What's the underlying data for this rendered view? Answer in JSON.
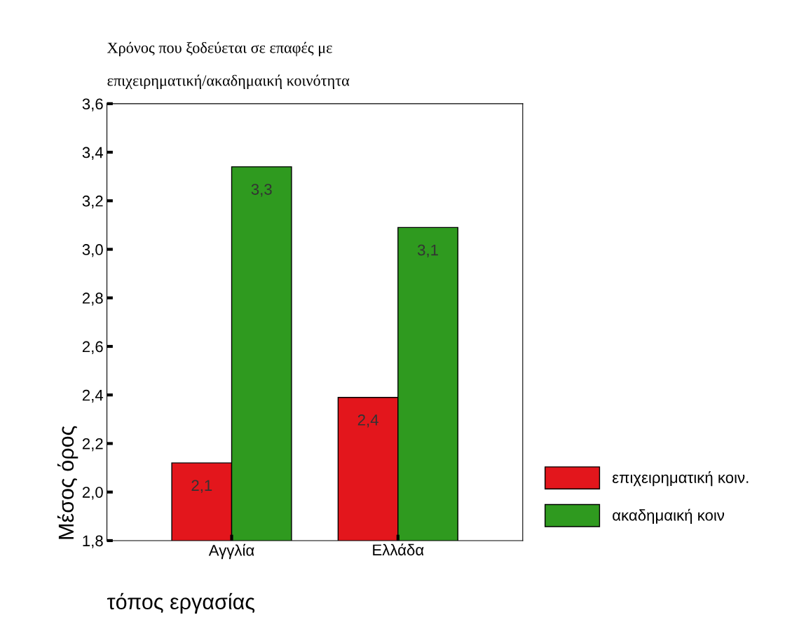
{
  "chart_data": {
    "type": "bar",
    "title": "Χρόνος που ξοδεύεται σε επαφές με\n\nεπιχειρηματική/ακαδημαική κοινότητα",
    "xlabel": "τόπος εργασίας",
    "ylabel": "Μέσος όρος",
    "categories": [
      "Αγγλία",
      "Ελλάδα"
    ],
    "series": [
      {
        "name": "επιχειρηματική κοιν.",
        "color": "#e3161c",
        "values": [
          2.12,
          2.39
        ],
        "value_labels": [
          "2,1",
          "2,4"
        ]
      },
      {
        "name": "ακαδημαική κοιν",
        "color": "#2f9a1f",
        "values": [
          3.34,
          3.09
        ],
        "value_labels": [
          "3,3",
          "3,1"
        ]
      }
    ],
    "ylim": [
      1.8,
      3.6
    ],
    "yticks": [
      {
        "value": 1.8,
        "label": "1,8"
      },
      {
        "value": 2.0,
        "label": "2,0"
      },
      {
        "value": 2.2,
        "label": "2,2"
      },
      {
        "value": 2.4,
        "label": "2,4"
      },
      {
        "value": 2.6,
        "label": "2,6"
      },
      {
        "value": 2.8,
        "label": "2,8"
      },
      {
        "value": 3.0,
        "label": "3,0"
      },
      {
        "value": 3.2,
        "label": "3,2"
      },
      {
        "value": 3.4,
        "label": "3,4"
      },
      {
        "value": 3.6,
        "label": "3,6"
      }
    ],
    "grid": false,
    "legend": "right"
  }
}
